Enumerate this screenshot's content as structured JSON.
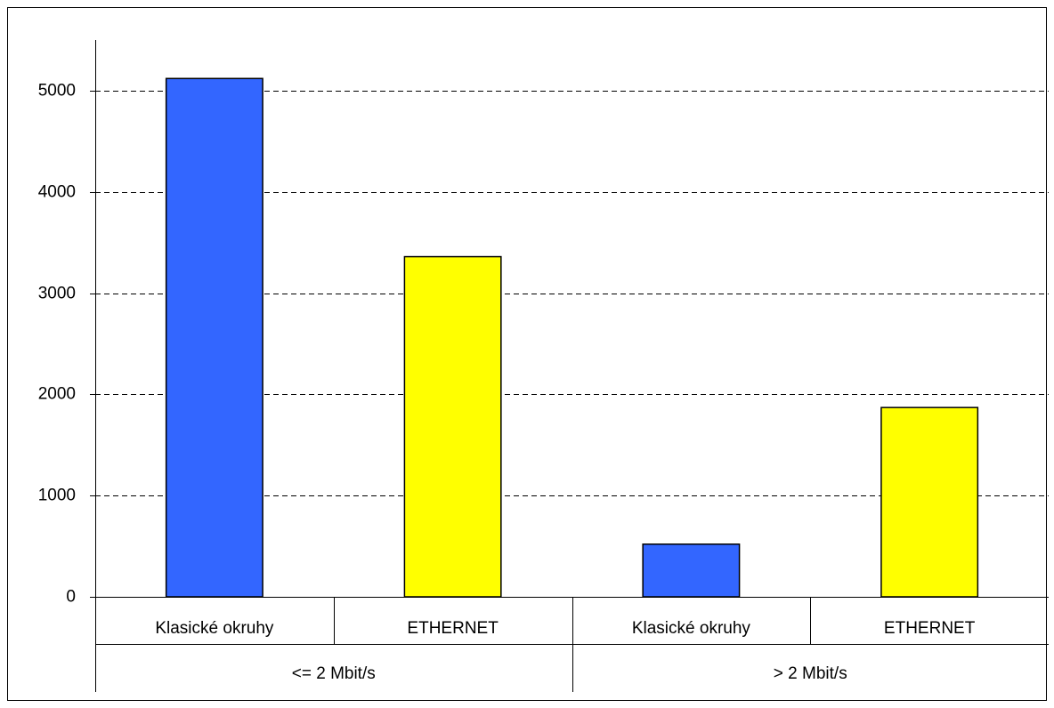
{
  "chart_data": {
    "type": "bar",
    "title": "",
    "xlabel": "",
    "ylabel": "",
    "ylim": [
      0,
      5500
    ],
    "yticks": [
      0,
      1000,
      2000,
      3000,
      4000,
      5000
    ],
    "grid": true,
    "legend": "none",
    "groups": [
      {
        "label": "<= 2 Mbit/s",
        "categories": [
          "Klasické okruhy",
          "ETHERNET"
        ],
        "values": [
          5120,
          3360
        ],
        "colors": [
          "#3366ff",
          "#ffff00"
        ]
      },
      {
        "label": "> 2 Mbit/s",
        "categories": [
          "Klasické okruhy",
          "ETHERNET"
        ],
        "values": [
          520,
          1870
        ],
        "colors": [
          "#3366ff",
          "#ffff00"
        ]
      }
    ]
  }
}
